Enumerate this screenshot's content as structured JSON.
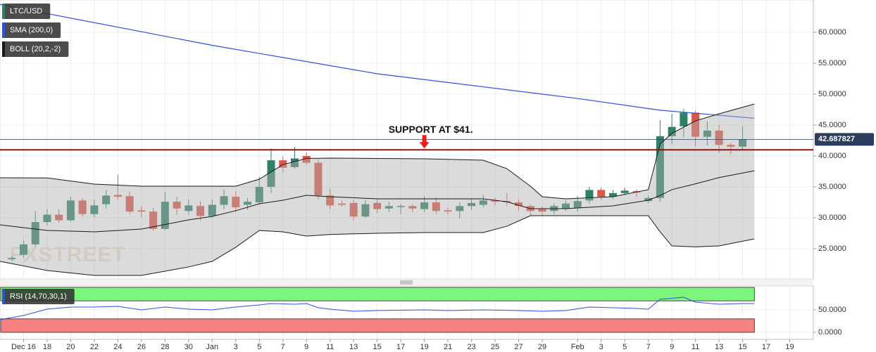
{
  "chart_data": [
    {
      "type": "candlestick",
      "x": [
        "Dec 15",
        "Dec 16",
        "Dec 17",
        "Dec 18",
        "Dec 19",
        "Dec 20",
        "Dec 21",
        "Dec 22",
        "Dec 23",
        "Dec 24",
        "Dec 25",
        "Dec 26",
        "Dec 27",
        "Dec 28",
        "Dec 29",
        "Dec 30",
        "Dec 31",
        "Jan 1",
        "Jan 2",
        "Jan 3",
        "Jan 4",
        "Jan 5",
        "Jan 6",
        "Jan 7",
        "Jan 8",
        "Jan 9",
        "Jan 10",
        "Jan 11",
        "Jan 12",
        "Jan 13",
        "Jan 14",
        "Jan 15",
        "Jan 16",
        "Jan 17",
        "Jan 18",
        "Jan 19",
        "Jan 20",
        "Jan 21",
        "Jan 22",
        "Jan 23",
        "Jan 24",
        "Jan 25",
        "Jan 26",
        "Jan 27",
        "Jan 28",
        "Jan 29",
        "Jan 30",
        "Jan 31",
        "Feb 1",
        "Feb 2",
        "Feb 3",
        "Feb 4",
        "Feb 5",
        "Feb 6",
        "Feb 7",
        "Feb 8",
        "Feb 9",
        "Feb 10",
        "Feb 11",
        "Feb 12",
        "Feb 13",
        "Feb 14",
        "Feb 15"
      ],
      "series": [
        {
          "name": "LTC/USD",
          "color": "#2f8069",
          "down_color": "#d9574a",
          "open": [
            23.3,
            24.0,
            25.7,
            29.3,
            30.5,
            29.6,
            32.8,
            30.6,
            32.2,
            33.7,
            33.5,
            31.2,
            31.0,
            28.2,
            32.6,
            31.1,
            31.9,
            30.3,
            32.1,
            33.4,
            32.1,
            32.5,
            35.0,
            39.3,
            38.2,
            40.0,
            38.9,
            33.6,
            32.3,
            32.4,
            30.2,
            32.4,
            31.5,
            31.8,
            31.9,
            31.4,
            32.5,
            31.2,
            31.1,
            31.9,
            32.1,
            32.8,
            32.7,
            32.5,
            31.9,
            31.4,
            31.1,
            31.5,
            31.6,
            32.8,
            34.5,
            33.4,
            34.0,
            34.3,
            32.7,
            33.2,
            43.2,
            44.8,
            47.0,
            43.1,
            44.1,
            41.8,
            41.5
          ],
          "high": [
            23.8,
            26.3,
            31.1,
            31.4,
            31.4,
            33.4,
            33.2,
            32.9,
            34.5,
            37.0,
            34.2,
            31.9,
            31.6,
            34.2,
            33.4,
            33.0,
            32.7,
            33.0,
            34.6,
            34.3,
            33.2,
            36.6,
            41.2,
            39.9,
            41.5,
            40.6,
            39.5,
            34.7,
            32.8,
            32.9,
            32.9,
            33.0,
            32.6,
            32.2,
            32.2,
            33.5,
            33.3,
            31.6,
            32.5,
            33.0,
            33.7,
            33.3,
            34.0,
            33.0,
            32.2,
            31.8,
            32.3,
            32.8,
            33.5,
            35.0,
            34.9,
            34.5,
            34.9,
            34.6,
            33.6,
            45.8,
            46.8,
            47.6,
            47.3,
            45.6,
            45.0,
            42.1,
            44.8
          ],
          "low": [
            23.0,
            23.5,
            25.3,
            28.8,
            29.2,
            29.4,
            30.2,
            30.1,
            31.5,
            32.9,
            30.6,
            30.1,
            27.9,
            28.0,
            30.5,
            30.6,
            29.5,
            30.0,
            31.4,
            31.0,
            31.3,
            32.1,
            34.0,
            37.4,
            37.9,
            38.6,
            33.0,
            31.4,
            31.8,
            29.6,
            30.0,
            30.7,
            30.9,
            30.6,
            30.9,
            30.9,
            30.6,
            30.5,
            29.9,
            31.3,
            31.7,
            32.0,
            32.0,
            31.2,
            30.4,
            30.4,
            30.6,
            31.1,
            31.0,
            32.3,
            32.9,
            33.0,
            33.7,
            33.4,
            32.4,
            32.6,
            41.9,
            43.0,
            41.5,
            41.7,
            40.5,
            40.3,
            41.0
          ],
          "close": [
            23.5,
            25.7,
            29.3,
            30.5,
            29.6,
            32.8,
            30.6,
            32.0,
            33.6,
            33.4,
            31.0,
            31.0,
            28.2,
            32.6,
            31.5,
            32.0,
            30.3,
            32.1,
            33.5,
            31.7,
            32.6,
            35.0,
            39.3,
            38.1,
            39.6,
            38.9,
            33.6,
            32.0,
            32.1,
            30.2,
            32.2,
            31.4,
            31.9,
            31.9,
            31.5,
            32.5,
            31.1,
            31.0,
            31.9,
            32.4,
            32.8,
            32.6,
            32.5,
            31.9,
            31.1,
            31.0,
            31.9,
            32.3,
            32.7,
            34.5,
            33.4,
            34.0,
            34.4,
            34.1,
            33.2,
            43.2,
            44.7,
            47.0,
            43.1,
            44.1,
            41.8,
            41.5,
            42.7
          ]
        }
      ],
      "indicators": [
        {
          "name": "SMA (200,0)",
          "type": "line",
          "color": "#2f4fe0",
          "x": [
            "Dec 14",
            "Jan 1",
            "Jan 15",
            "Feb 1",
            "Feb 8",
            "Feb 16"
          ],
          "values": [
            64.5,
            57.9,
            53.3,
            49.3,
            47.4,
            46.1
          ]
        },
        {
          "name": "BOLL (20,2,-2)",
          "type": "band",
          "color": "#1a1a1a",
          "fill": "rgba(175,175,175,0.45)",
          "x": [
            "Dec 14",
            "Dec 18",
            "Dec 22",
            "Dec 26",
            "Dec 30",
            "Jan 1",
            "Jan 3",
            "Jan 5",
            "Jan 7",
            "Jan 9",
            "Jan 11",
            "Jan 15",
            "Jan 19",
            "Jan 24",
            "Jan 26",
            "Jan 28",
            "Jan 29",
            "Jan 31",
            "Feb 4",
            "Feb 7",
            "Feb 8",
            "Feb 9",
            "Feb 11",
            "Feb 13",
            "Feb 16"
          ],
          "upper": [
            36.48,
            36.45,
            35.45,
            35.11,
            35.11,
            35.11,
            35.11,
            36.25,
            38.6,
            39.6,
            39.66,
            39.6,
            39.55,
            39.32,
            37.95,
            35.11,
            33.41,
            33.07,
            33.41,
            34.55,
            41.93,
            43.64,
            45.68,
            46.82,
            48.41
          ],
          "middle": [
            28.86,
            27.95,
            27.73,
            28.18,
            29.66,
            30.23,
            31.14,
            32.27,
            32.84,
            33.64,
            33.41,
            33.07,
            33.07,
            33.07,
            32.6,
            31.48,
            31.48,
            31.48,
            31.93,
            32.84,
            33.6,
            34.55,
            35.5,
            36.5,
            37.61
          ],
          "lower": [
            22.95,
            21.48,
            20.68,
            20.68,
            22.05,
            22.95,
            25.23,
            27.95,
            27.73,
            27.05,
            27.3,
            27.5,
            27.61,
            27.61,
            28.64,
            30.34,
            30.34,
            30.34,
            30.34,
            30.34,
            27.73,
            25.45,
            25.3,
            25.45,
            26.59
          ]
        }
      ],
      "xlim": [
        "Dec 14",
        "Feb 21"
      ],
      "ylim": [
        20.11,
        65.23
      ],
      "yticks": [
        {
          "value": 25,
          "label": "25.0000"
        },
        {
          "value": 30,
          "label": "30.0000"
        },
        {
          "value": 35,
          "label": "35.0000"
        },
        {
          "value": 40,
          "label": "40.0000"
        },
        {
          "value": 45,
          "label": "45.0000"
        },
        {
          "value": 50,
          "label": "50.0000"
        },
        {
          "value": 55,
          "label": "55.0000"
        },
        {
          "value": 60,
          "label": "60.0000"
        }
      ],
      "grid": true,
      "current_price": {
        "value": 42.687827,
        "color": "#2c3e5f"
      },
      "support": {
        "value": 41,
        "color": "#8e1212"
      },
      "annotation": {
        "text": "SUPPORT AT $41.",
        "x": "Jan 19",
        "color": "#e8201c"
      },
      "watermark": "FXSTREET"
    },
    {
      "type": "line",
      "series": [
        {
          "name": "RSI (14,70,30,1)",
          "color": "#2f4fe0",
          "x": [
            "Dec 14",
            "Dec 16",
            "Dec 18",
            "Dec 20",
            "Dec 22",
            "Dec 24",
            "Dec 26",
            "Dec 28",
            "Dec 30",
            "Jan 1",
            "Jan 3",
            "Jan 5",
            "Jan 6",
            "Jan 8",
            "Jan 9",
            "Jan 10",
            "Jan 11",
            "Jan 13",
            "Jan 15",
            "Jan 19",
            "Jan 21",
            "Jan 24",
            "Jan 27",
            "Jan 29",
            "Jan 31",
            "Feb 2",
            "Feb 4",
            "Feb 6",
            "Feb 7",
            "Feb 8",
            "Feb 10",
            "Feb 11",
            "Feb 13",
            "Feb 15",
            "Feb 16"
          ],
          "values": [
            28.1,
            37.5,
            51.6,
            56.3,
            56.3,
            57.8,
            50,
            56.3,
            51.6,
            50,
            56.3,
            60.9,
            64,
            62.5,
            64,
            54.7,
            51.6,
            46.9,
            48.4,
            50,
            48.4,
            50,
            48.4,
            46.9,
            48.4,
            56.3,
            54.7,
            53.1,
            51.6,
            73.4,
            78.1,
            67.2,
            62.5,
            64,
            64
          ]
        }
      ],
      "zones": [
        {
          "from": 70,
          "to": 100,
          "color": "#7df57d"
        },
        {
          "from": 0,
          "to": 30,
          "color": "#f78282"
        }
      ],
      "xlim": [
        "Dec 14",
        "Feb 21"
      ],
      "ylim": [
        -15.6,
        103.1
      ],
      "yticks": [
        {
          "value": 0,
          "label": "0.0000"
        },
        {
          "value": 50,
          "label": "50.0000"
        }
      ],
      "xticks": [
        {
          "value": "Dec 16",
          "label": "Dec 16"
        },
        {
          "value": "Dec 18",
          "label": "18"
        },
        {
          "value": "Dec 20",
          "label": "20"
        },
        {
          "value": "Dec 22",
          "label": "22"
        },
        {
          "value": "Dec 24",
          "label": "24"
        },
        {
          "value": "Dec 26",
          "label": "26"
        },
        {
          "value": "Dec 28",
          "label": "28"
        },
        {
          "value": "Dec 30",
          "label": "30"
        },
        {
          "value": "Jan 1",
          "label": "Jan"
        },
        {
          "value": "Jan 3",
          "label": "3"
        },
        {
          "value": "Jan 5",
          "label": "5"
        },
        {
          "value": "Jan 7",
          "label": "7"
        },
        {
          "value": "Jan 9",
          "label": "9"
        },
        {
          "value": "Jan 11",
          "label": "11"
        },
        {
          "value": "Jan 13",
          "label": "13"
        },
        {
          "value": "Jan 15",
          "label": "15"
        },
        {
          "value": "Jan 17",
          "label": "17"
        },
        {
          "value": "Jan 19",
          "label": "19"
        },
        {
          "value": "Jan 21",
          "label": "21"
        },
        {
          "value": "Jan 23",
          "label": "23"
        },
        {
          "value": "Jan 25",
          "label": "25"
        },
        {
          "value": "Jan 27",
          "label": "27"
        },
        {
          "value": "Jan 29",
          "label": "29"
        },
        {
          "value": "Feb 1",
          "label": "Feb"
        },
        {
          "value": "Feb 3",
          "label": "3"
        },
        {
          "value": "Feb 5",
          "label": "5"
        },
        {
          "value": "Feb 7",
          "label": "7"
        },
        {
          "value": "Feb 9",
          "label": "9"
        },
        {
          "value": "Feb 11",
          "label": "11"
        },
        {
          "value": "Feb 13",
          "label": "13"
        },
        {
          "value": "Feb 15",
          "label": "15"
        },
        {
          "value": "Feb 17",
          "label": "17"
        },
        {
          "value": "Feb 19",
          "label": "19"
        }
      ],
      "grid": true
    }
  ]
}
